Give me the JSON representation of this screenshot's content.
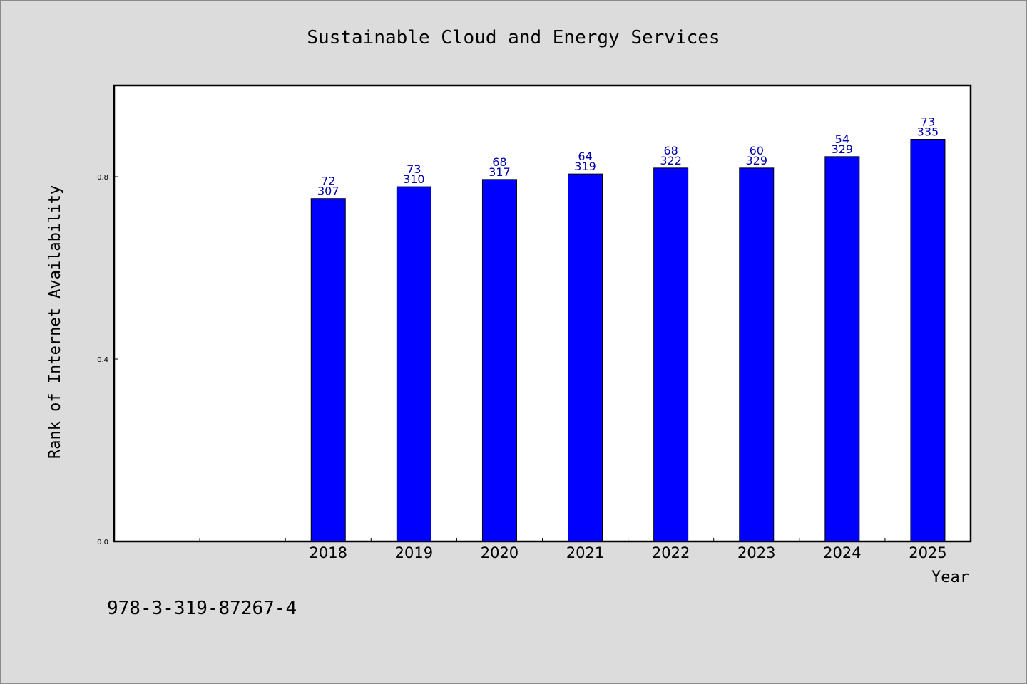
{
  "chart_data": {
    "type": "bar",
    "title": "Sustainable Cloud and Energy Services",
    "xlabel": "Year",
    "ylabel": "Rank of Internet Availability",
    "categories": [
      "",
      "",
      "2018",
      "2019",
      "2020",
      "2021",
      "2022",
      "2023",
      "2024",
      "2025"
    ],
    "values": [
      null,
      null,
      0.752,
      0.778,
      0.794,
      0.806,
      0.819,
      0.819,
      0.844,
      0.882
    ],
    "data_labels_top": [
      "",
      "",
      "72",
      "73",
      "68",
      "64",
      "68",
      "60",
      "54",
      "73"
    ],
    "data_labels_bottom": [
      "",
      "",
      "307",
      "310",
      "317",
      "319",
      "322",
      "329",
      "329",
      "335"
    ],
    "yticks": [
      0.0,
      0.4,
      0.8
    ],
    "ytick_labels": [
      "0.0",
      "0.4",
      "0.8"
    ],
    "ylim": [
      0,
      1.0
    ],
    "grid": false,
    "bar_color": "#0000ff",
    "label_color": "#0000aa"
  },
  "footer": {
    "isbn": "978-3-319-87267-4"
  },
  "colors": {
    "background": "#dcdcdc",
    "plot_background": "#ffffff"
  }
}
